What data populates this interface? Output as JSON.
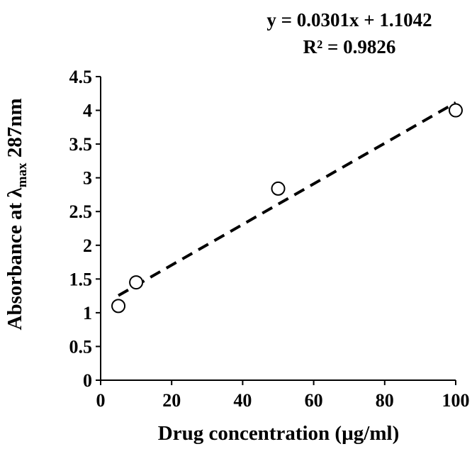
{
  "chart_data": {
    "type": "scatter",
    "equation": "y = 0.0301x + 1.1042",
    "r_squared": "R² = 0.9826",
    "xlabel": "Drug concentration (µg/ml)",
    "ylabel": {
      "prefix": "Absorbance at λ",
      "subscript": "max",
      "suffix": " 287nm"
    },
    "xlim": [
      0,
      100
    ],
    "ylim": [
      0,
      4.5
    ],
    "x_ticks": [
      "0",
      "20",
      "40",
      "60",
      "80",
      "100"
    ],
    "y_ticks": [
      "0",
      "0.5",
      "1",
      "1.5",
      "2",
      "2.5",
      "3",
      "3.5",
      "4",
      "4.5"
    ],
    "grid": false,
    "series": [
      {
        "marker": "open-circle",
        "points": [
          {
            "x": 5,
            "y": 1.1
          },
          {
            "x": 10,
            "y": 1.45
          },
          {
            "x": 50,
            "y": 2.84
          },
          {
            "x": 100,
            "y": 4.0
          }
        ]
      }
    ],
    "trendline": {
      "style": "dashed",
      "slope": 0.0301,
      "intercept": 1.1042,
      "x_range": [
        5,
        100
      ]
    }
  }
}
